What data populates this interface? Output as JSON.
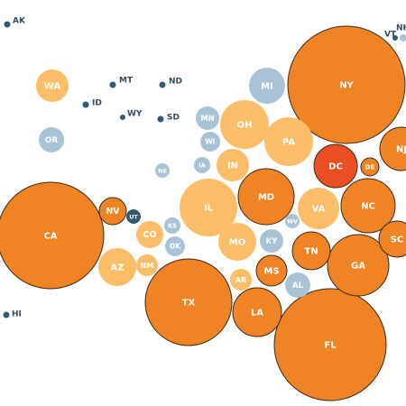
{
  "chart_data": {
    "type": "bubble-cartogram",
    "colors": {
      "dark-dot": "#2f5a74",
      "light-blue": "#a9c3d6",
      "light-orange": "#fbbd68",
      "orange": "#f08323",
      "red": "#ea4f23",
      "outline": "#3a2a1c"
    },
    "states": [
      {
        "label": "AK",
        "color": "dark-dot"
      },
      {
        "label": "HI",
        "color": "dark-dot"
      },
      {
        "label": "ID",
        "color": "dark-dot"
      },
      {
        "label": "MT",
        "color": "dark-dot"
      },
      {
        "label": "ND",
        "color": "dark-dot"
      },
      {
        "label": "WY",
        "color": "dark-dot"
      },
      {
        "label": "SD",
        "color": "dark-dot"
      },
      {
        "label": "VT",
        "color": "dark-dot"
      },
      {
        "label": "NH",
        "color": "light-blue"
      },
      {
        "label": "UT",
        "color": "dark-dot"
      },
      {
        "label": "WA",
        "color": "light-orange"
      },
      {
        "label": "OR",
        "color": "light-blue"
      },
      {
        "label": "MI",
        "color": "light-blue"
      },
      {
        "label": "MN",
        "color": "light-blue"
      },
      {
        "label": "WI",
        "color": "light-blue"
      },
      {
        "label": "IA",
        "color": "light-blue"
      },
      {
        "label": "NE",
        "color": "light-blue"
      },
      {
        "label": "KS",
        "color": "light-blue"
      },
      {
        "label": "OK",
        "color": "light-blue"
      },
      {
        "label": "KY",
        "color": "light-blue"
      },
      {
        "label": "WV",
        "color": "light-blue"
      },
      {
        "label": "AL",
        "color": "light-blue"
      },
      {
        "label": "OH",
        "color": "light-orange"
      },
      {
        "label": "PA",
        "color": "light-orange"
      },
      {
        "label": "IN",
        "color": "light-orange"
      },
      {
        "label": "IL",
        "color": "light-orange"
      },
      {
        "label": "CO",
        "color": "light-orange"
      },
      {
        "label": "AZ",
        "color": "light-orange"
      },
      {
        "label": "NM",
        "color": "light-orange"
      },
      {
        "label": "MO",
        "color": "light-orange"
      },
      {
        "label": "VA",
        "color": "light-orange"
      },
      {
        "label": "AR",
        "color": "light-orange"
      },
      {
        "label": "NY",
        "color": "orange"
      },
      {
        "label": "CA",
        "color": "orange"
      },
      {
        "label": "NV",
        "color": "orange"
      },
      {
        "label": "MD",
        "color": "orange"
      },
      {
        "label": "DE",
        "color": "orange"
      },
      {
        "label": "NC",
        "color": "orange"
      },
      {
        "label": "SC",
        "color": "orange"
      },
      {
        "label": "TN",
        "color": "orange"
      },
      {
        "label": "GA",
        "color": "orange"
      },
      {
        "label": "MS",
        "color": "orange"
      },
      {
        "label": "TX",
        "color": "orange"
      },
      {
        "label": "LA",
        "color": "orange"
      },
      {
        "label": "FL",
        "color": "orange"
      },
      {
        "label": "NJ",
        "color": "orange"
      },
      {
        "label": "DC",
        "color": "red"
      }
    ]
  }
}
